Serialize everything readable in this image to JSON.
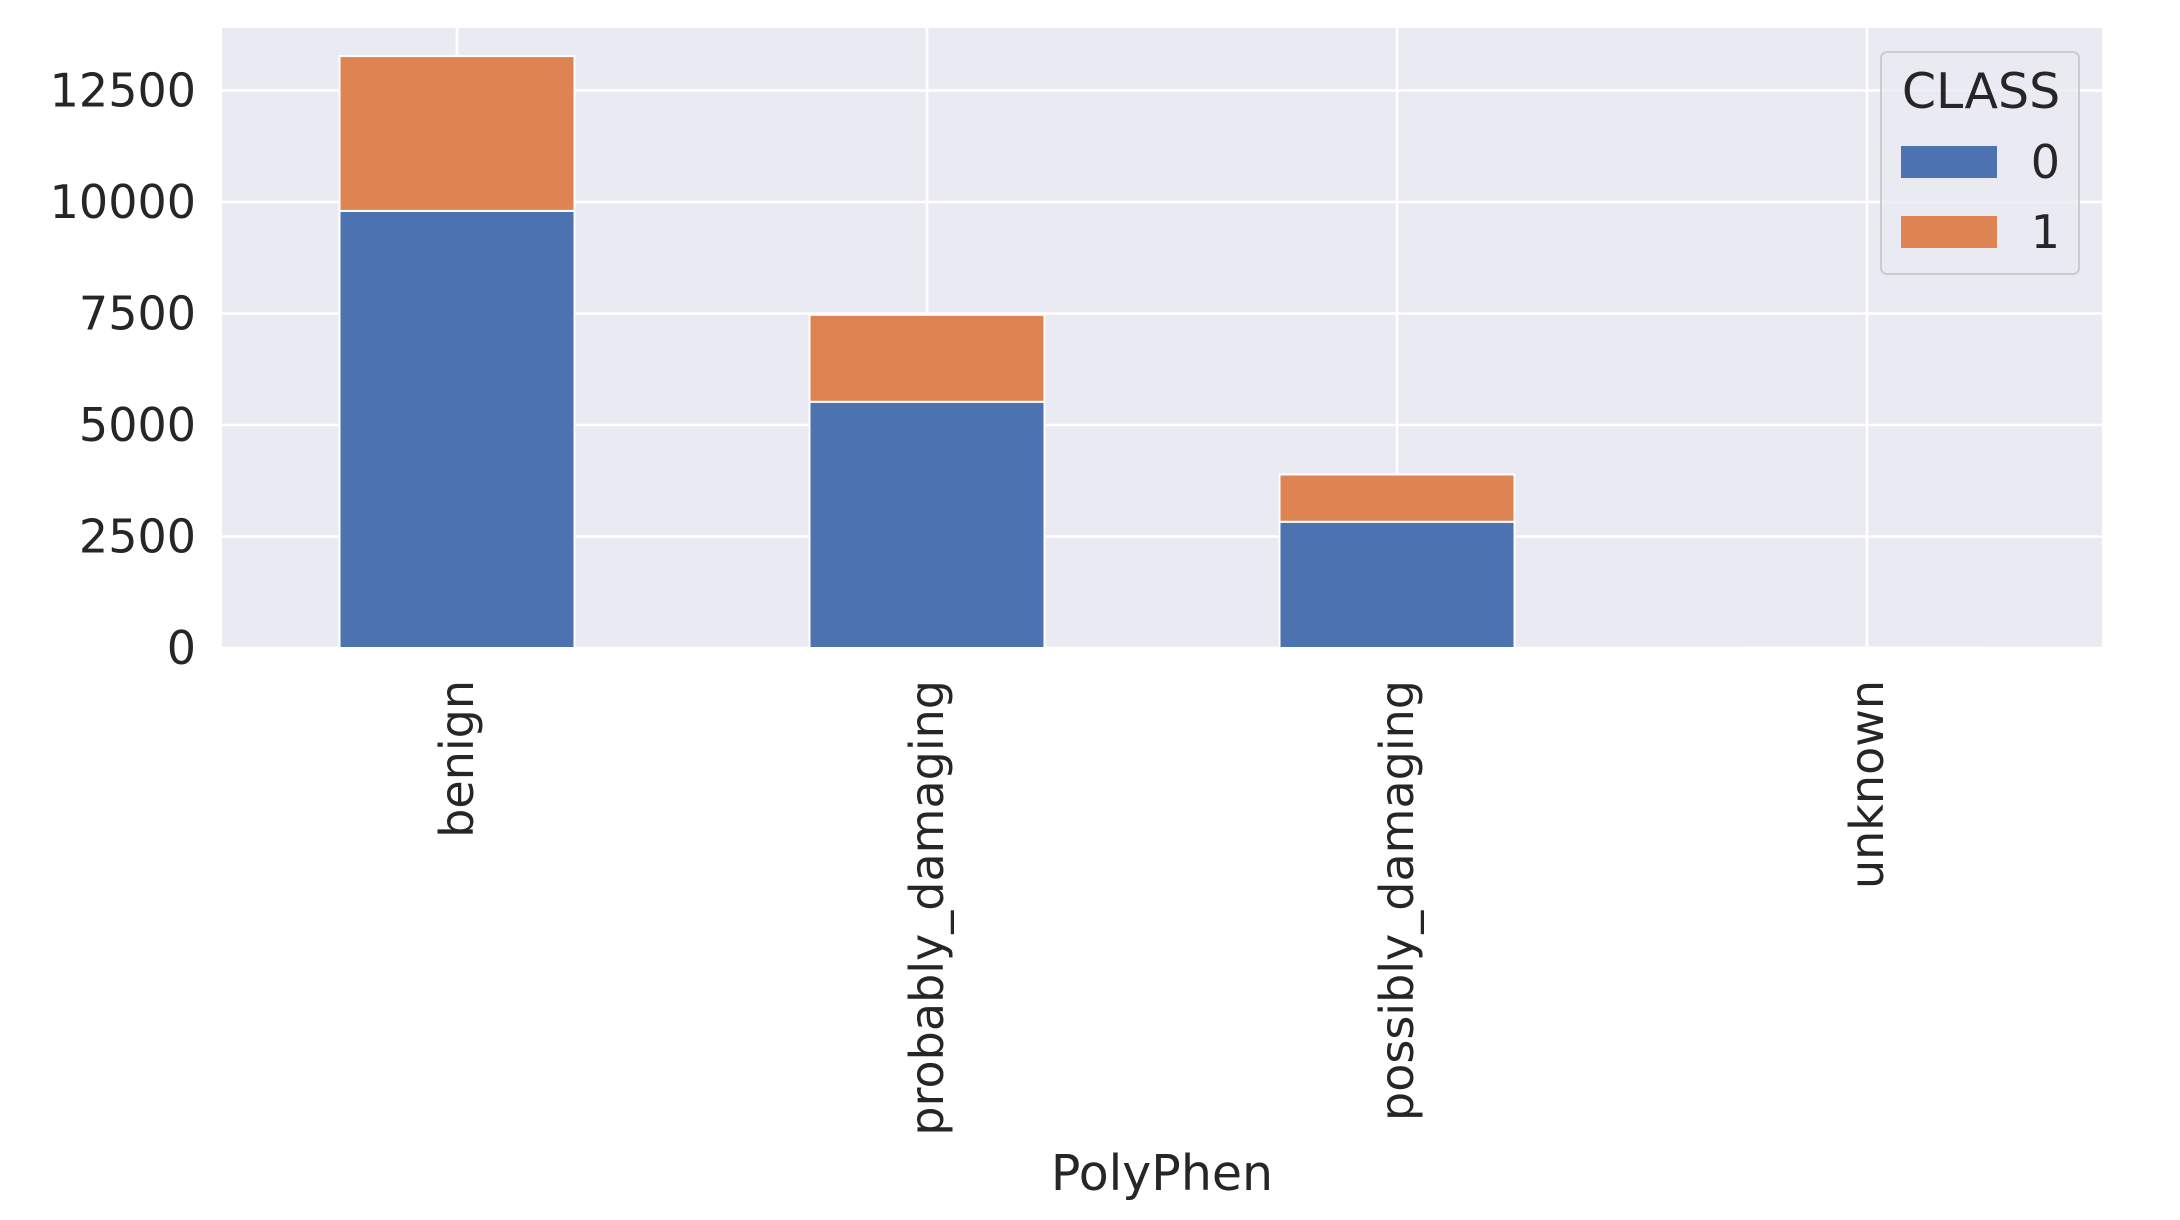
{
  "chart_data": {
    "type": "bar",
    "stacked": true,
    "categories": [
      "benign",
      "probably_damaging",
      "possibly_damaging",
      "unknown"
    ],
    "series": [
      {
        "name": "0",
        "values": [
          9800,
          5520,
          2830,
          5
        ],
        "color": "#4c72b0"
      },
      {
        "name": "1",
        "values": [
          3470,
          1950,
          1060,
          3
        ],
        "color": "#dd8452"
      }
    ],
    "xlabel": "PolyPhen",
    "ylabel": "",
    "ylim": [
      0,
      13900
    ],
    "yticks": [
      0,
      2500,
      5000,
      7500,
      10000,
      12500
    ],
    "ytick_labels": [
      "0",
      "2500",
      "5000",
      "7500",
      "10000",
      "12500"
    ],
    "legend": {
      "title": "CLASS",
      "placement": "top-right"
    },
    "grid": true,
    "style": {
      "plot_background": "#eaeaf2",
      "grid_color": "#ffffff"
    }
  }
}
